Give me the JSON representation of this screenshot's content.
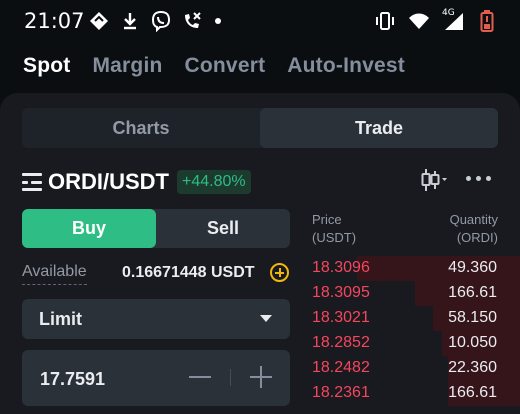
{
  "status_bar": {
    "time": "21:07",
    "left_icons": [
      "diamond-notification-icon",
      "download-icon",
      "viber-icon",
      "missed-call-icon"
    ],
    "right_icons": [
      "vibrate-icon",
      "wifi-icon",
      "signal-4g-icon",
      "battery-low-icon"
    ],
    "network_label": "4G"
  },
  "modes": [
    "Spot",
    "Margin",
    "Convert",
    "Auto-Invest"
  ],
  "active_mode": "Spot",
  "segment": {
    "charts": "Charts",
    "trade": "Trade",
    "active": "Trade"
  },
  "pair": {
    "name": "ORDI/USDT",
    "change": "+44.80%"
  },
  "trade": {
    "buy_label": "Buy",
    "sell_label": "Sell",
    "available_label": "Available",
    "available_value": "0.16671448 USDT",
    "order_type": "Limit",
    "price_value": "17.7591"
  },
  "order_book": {
    "price_header_1": "Price",
    "price_header_2": "(USDT)",
    "qty_header_1": "Quantity",
    "qty_header_2": "(ORDI)",
    "asks": [
      {
        "price": "18.3096",
        "qty": "49.360",
        "depth": 0.75
      },
      {
        "price": "18.3095",
        "qty": "166.61",
        "depth": 0.48
      },
      {
        "price": "18.3021",
        "qty": "58.150",
        "depth": 0.4
      },
      {
        "price": "18.2852",
        "qty": "10.050",
        "depth": 0.36
      },
      {
        "price": "18.2482",
        "qty": "22.360",
        "depth": 0.33
      },
      {
        "price": "18.2361",
        "qty": "166.61",
        "depth": 0.33
      }
    ]
  },
  "colors": {
    "buy_green": "#2ebd85",
    "sell_red": "#f6465d",
    "accent_yellow": "#f0b90b"
  }
}
